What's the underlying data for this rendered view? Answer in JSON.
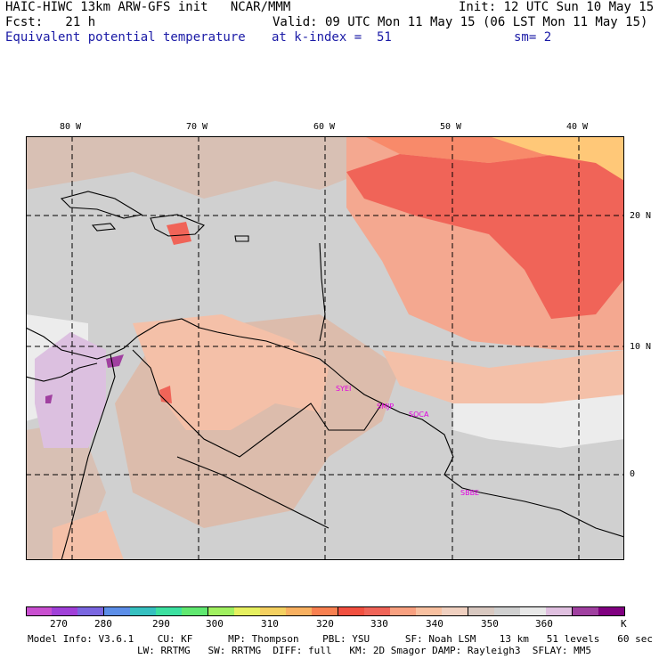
{
  "header": {
    "line1_left": "HAIC-HIWC 13km ARW-GFS init   NCAR/MMM",
    "line1_right": "Init: 12 UTC Sun 10 May 15",
    "line2_left": "Fcst:   21 h",
    "line2_right": "Valid: 09 UTC Mon 11 May 15 (06 LST Mon 11 May 15)",
    "line3_left": "Equivalent potential temperature",
    "line3_mid": "at k-index =  51",
    "line3_right": "sm= 2"
  },
  "map": {
    "lon_labels": [
      "80 W",
      "70 W",
      "60 W",
      "50 W",
      "40 W"
    ],
    "lat_labels": [
      "20 N",
      "10 N",
      "0"
    ],
    "sites": [
      "SYEI",
      "SMJP",
      "SOCA",
      "SBBE"
    ]
  },
  "colorbar": {
    "colors": [
      "#c94fd0",
      "#a040d8",
      "#7a66e0",
      "#5c8ee8",
      "#36c0c0",
      "#3ce0a0",
      "#60e870",
      "#a0f060",
      "#e6f060",
      "#f4d060",
      "#f8b060",
      "#f88050",
      "#f25040",
      "#f06458",
      "#f8a080",
      "#f8c0a0",
      "#f0d0c0",
      "#d8c8c0",
      "#d0d0d0",
      "#e8e8e8",
      "#e0c0e0",
      "#a040a0",
      "#800080"
    ],
    "labels": [
      "270",
      "280",
      "290",
      "300",
      "310",
      "320",
      "330",
      "340",
      "350",
      "360",
      "K"
    ]
  },
  "footer": {
    "line1": "Model Info: V3.6.1    CU: KF      MP: Thompson    PBL: YSU      SF: Noah LSM    13 km   51 levels   60 sec",
    "line2": "LW: RRTMG   SW: RRTMG  DIFF: full   KM: 2D Smagor DAMP: Rayleigh3  SFLAY: MM5"
  },
  "palette": {
    "gray": "#d0d0d0",
    "tan": "#d8b8a8",
    "peach": "#f4c0a8",
    "salmon": "#f4a088",
    "red": "#f06458",
    "orange": "#f89a70",
    "gold": "#ffc878",
    "white": "#ececec",
    "lavender": "#dcc0e0",
    "purple": "#a040a0"
  }
}
